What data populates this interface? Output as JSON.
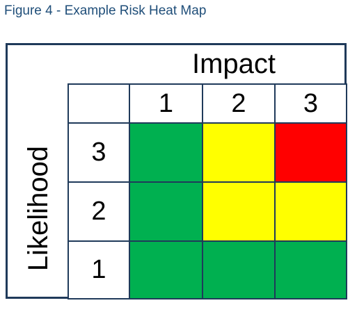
{
  "caption": "Figure 4 - Example Risk Heat Map",
  "axis": {
    "impact_label": "Impact",
    "likelihood_label": "Likelihood"
  },
  "colors": {
    "green": "#00b050",
    "yellow": "#ffff00",
    "red": "#ff0000",
    "caption": "#1f4e79",
    "border": "#1f3a5a"
  },
  "chart_data": {
    "type": "heatmap",
    "x_axis_label": "Impact",
    "y_axis_label": "Likelihood",
    "impact_values": [
      "1",
      "2",
      "3"
    ],
    "likelihood_values": [
      "3",
      "2",
      "1"
    ],
    "cells": [
      [
        "green",
        "yellow",
        "red"
      ],
      [
        "green",
        "yellow",
        "yellow"
      ],
      [
        "green",
        "green",
        "green"
      ]
    ]
  }
}
